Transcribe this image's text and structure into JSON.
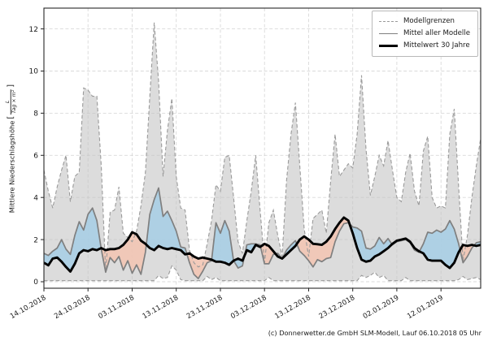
{
  "legend": {
    "items": [
      {
        "label": "Modellgrenzen",
        "swatch": "dashed-gray"
      },
      {
        "label": "Mittel aller Modelle",
        "swatch": "solid-gray"
      },
      {
        "label": "Mittelwert 30 Jahre",
        "swatch": "solid-black"
      }
    ]
  },
  "axes": {
    "ylabel": {
      "text": "Mittlere Niederschlagshöhe",
      "bracket_open": "[",
      "unit_numerator": "L",
      "unit_denominator": "Tag × m²",
      "bracket_close": "]"
    },
    "x_tick_labels": [
      "14.10.2018",
      "24.10.2018",
      "03.11.2018",
      "13.11.2018",
      "23.11.2018",
      "03.12.2018",
      "13.12.2018",
      "23.12.2018",
      "02.01.2019",
      "12.01.2019"
    ],
    "y_tick_labels": [
      "0",
      "2",
      "4",
      "6",
      "8",
      "10",
      "12"
    ]
  },
  "footer": {
    "credit": "(c) Donnerwetter.de GmbH SLM-Modell, Lauf 06.10.2018 05 Uhr"
  },
  "chart_data": {
    "type": "line",
    "title": "",
    "xlabel": "",
    "ylabel": "Mittlere Niederschlagshöhe [L/(Tag × m²)]",
    "x_unit": "Tage ab 14.10.2018, 1 Punkt pro Tag",
    "x_start": 0,
    "x_step": 1,
    "ylim": [
      -0.3,
      13.0
    ],
    "grid": true,
    "legend_position": "upper right",
    "x_ticks": {
      "positions": [
        0,
        10,
        20,
        30,
        40,
        50,
        60,
        70,
        80,
        90
      ],
      "labels": [
        "14.10.2018",
        "24.10.2018",
        "03.11.2018",
        "13.11.2018",
        "23.11.2018",
        "03.12.2018",
        "13.12.2018",
        "23.12.2018",
        "02.01.2019",
        "12.01.2019"
      ]
    },
    "y_ticks": [
      0,
      2,
      4,
      6,
      8,
      10,
      12
    ],
    "colors": {
      "band": "#dcdcdc",
      "edge": "#9a9a9a",
      "above": "#a8cee4",
      "below": "#f2c5b4",
      "mean": "#7f7f7f",
      "clim": "#000000",
      "grid": "#c4c4c4",
      "frame": "#262626"
    },
    "series": [
      {
        "name": "Modellgrenzen (Obergrenze)",
        "style": "dashed",
        "values": [
          5.3,
          4.3,
          3.5,
          4.5,
          5.3,
          6.0,
          3.8,
          5.0,
          5.2,
          9.2,
          9.1,
          8.8,
          8.8,
          5.5,
          0.5,
          3.3,
          3.4,
          4.5,
          2.3,
          2.1,
          1.9,
          2.4,
          3.6,
          5.2,
          8.8,
          12.3,
          9.5,
          5.0,
          7.2,
          8.7,
          5.0,
          3.5,
          3.4,
          1.5,
          0.9,
          0.7,
          0.8,
          1.8,
          2.9,
          4.6,
          4.3,
          5.9,
          6.0,
          4.0,
          1.9,
          1.35,
          2.9,
          4.3,
          6.0,
          3.4,
          0.9,
          2.8,
          3.4,
          2.2,
          1.2,
          4.8,
          7.0,
          8.5,
          5.5,
          2.5,
          1.2,
          3.0,
          3.2,
          3.4,
          2.3,
          4.8,
          7.0,
          5.0,
          5.3,
          5.6,
          5.4,
          7.0,
          9.8,
          6.3,
          4.1,
          5.0,
          6.0,
          5.5,
          6.7,
          5.3,
          4.0,
          3.8,
          5.2,
          6.1,
          4.3,
          3.6,
          6.2,
          6.9,
          4.0,
          3.5,
          3.6,
          3.5,
          7.0,
          8.2,
          4.5,
          1.0,
          2.2,
          4.0,
          5.5,
          6.8
        ]
      },
      {
        "name": "Modellgrenzen (Untergrenze)",
        "style": "dashed",
        "values": [
          0.05,
          0.05,
          0.05,
          0.05,
          0.05,
          0.05,
          0.05,
          0.05,
          0.05,
          0.05,
          0.05,
          0.05,
          0.05,
          0.05,
          0.05,
          0.05,
          0.05,
          0.05,
          0.05,
          0.05,
          0.05,
          0.05,
          0.05,
          0.05,
          0.05,
          0.05,
          0.3,
          0.15,
          0.2,
          0.75,
          0.55,
          0.1,
          0.05,
          0.05,
          0.05,
          0.05,
          0.05,
          0.25,
          0.1,
          0.2,
          0.05,
          0.05,
          0.05,
          0.05,
          0.05,
          0.05,
          0.05,
          0.05,
          0.05,
          0.05,
          0.05,
          0.2,
          0.05,
          0.05,
          0.05,
          0.05,
          0.05,
          0.05,
          0.05,
          0.05,
          0.05,
          0.05,
          0.05,
          0.05,
          0.05,
          0.05,
          0.05,
          0.05,
          0.05,
          0.05,
          0.05,
          0.05,
          0.3,
          0.2,
          0.3,
          0.45,
          0.2,
          0.3,
          0.05,
          0.05,
          0.05,
          0.05,
          0.2,
          0.05,
          0.05,
          0.05,
          0.05,
          0.05,
          0.05,
          0.05,
          0.05,
          0.05,
          0.05,
          0.05,
          0.1,
          0.25,
          0.1,
          0.15,
          0.2,
          0.1
        ]
      },
      {
        "name": "Mittel aller Modelle",
        "style": "solid",
        "values": [
          1.35,
          1.25,
          1.45,
          1.6,
          2.0,
          1.55,
          1.3,
          2.2,
          2.85,
          2.45,
          3.2,
          3.5,
          2.9,
          1.55,
          0.45,
          1.15,
          0.9,
          1.2,
          0.55,
          1.0,
          0.4,
          0.8,
          0.35,
          1.4,
          3.2,
          3.9,
          4.45,
          3.1,
          3.35,
          2.9,
          2.4,
          1.65,
          1.6,
          0.9,
          0.35,
          0.15,
          0.5,
          0.9,
          1.0,
          2.8,
          2.3,
          2.9,
          2.4,
          1.0,
          0.65,
          0.75,
          1.75,
          1.8,
          1.8,
          1.75,
          0.85,
          0.85,
          1.3,
          1.35,
          1.1,
          1.5,
          1.75,
          1.95,
          1.45,
          1.25,
          1.0,
          0.7,
          1.05,
          0.95,
          1.1,
          1.15,
          1.9,
          2.4,
          2.75,
          2.8,
          2.6,
          2.55,
          2.4,
          1.6,
          1.55,
          1.7,
          2.1,
          1.8,
          2.05,
          1.75,
          1.9,
          1.95,
          2.0,
          1.85,
          1.5,
          1.4,
          1.8,
          2.35,
          2.3,
          2.45,
          2.35,
          2.5,
          2.9,
          2.5,
          1.8,
          0.9,
          1.2,
          1.6,
          1.85,
          1.9
        ]
      },
      {
        "name": "Mittelwert 30 Jahre",
        "style": "solid-thick",
        "values": [
          0.9,
          0.78,
          1.1,
          1.15,
          0.95,
          0.7,
          0.48,
          0.85,
          1.35,
          1.5,
          1.45,
          1.55,
          1.5,
          1.6,
          1.5,
          1.55,
          1.55,
          1.6,
          1.75,
          2.0,
          2.35,
          2.25,
          1.95,
          1.8,
          1.6,
          1.5,
          1.7,
          1.6,
          1.55,
          1.6,
          1.55,
          1.5,
          1.3,
          1.35,
          1.2,
          1.1,
          1.15,
          1.1,
          1.05,
          0.95,
          0.95,
          0.9,
          0.8,
          1.0,
          1.1,
          1.0,
          1.5,
          1.4,
          1.75,
          1.65,
          1.8,
          1.7,
          1.45,
          1.2,
          1.1,
          1.3,
          1.5,
          1.7,
          2.0,
          2.15,
          2.0,
          1.8,
          1.78,
          1.75,
          1.9,
          2.15,
          2.5,
          2.8,
          3.05,
          2.9,
          2.3,
          1.6,
          1.05,
          0.95,
          1.0,
          1.2,
          1.3,
          1.45,
          1.6,
          1.8,
          1.95,
          2.0,
          2.05,
          1.9,
          1.6,
          1.45,
          1.35,
          1.05,
          1.0,
          1.0,
          1.0,
          0.8,
          0.65,
          0.9,
          1.4,
          1.75,
          1.7,
          1.75,
          1.7,
          1.75
        ]
      }
    ]
  }
}
